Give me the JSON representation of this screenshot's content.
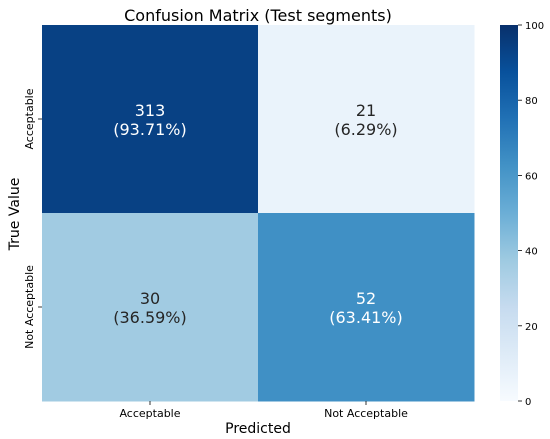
{
  "chart_data": {
    "type": "heatmap",
    "title": "Confusion Matrix (Test segments)",
    "xlabel": "Predicted",
    "ylabel": "True Value",
    "x_categories": [
      "Acceptable",
      "Not Acceptable"
    ],
    "y_categories": [
      "Acceptable",
      "Not Acceptable"
    ],
    "cells": [
      [
        {
          "count": "313",
          "percent": "(93.71%)",
          "value": 93.71
        },
        {
          "count": "21",
          "percent": "(6.29%)",
          "value": 6.29
        }
      ],
      [
        {
          "count": "30",
          "percent": "(36.59%)",
          "value": 36.59
        },
        {
          "count": "52",
          "percent": "(63.41%)",
          "value": 63.41
        }
      ]
    ],
    "colorbar": {
      "range": [
        0,
        100
      ],
      "ticks": [
        "0",
        "20",
        "40",
        "60",
        "80",
        "100"
      ],
      "colormap": "Blues"
    }
  }
}
